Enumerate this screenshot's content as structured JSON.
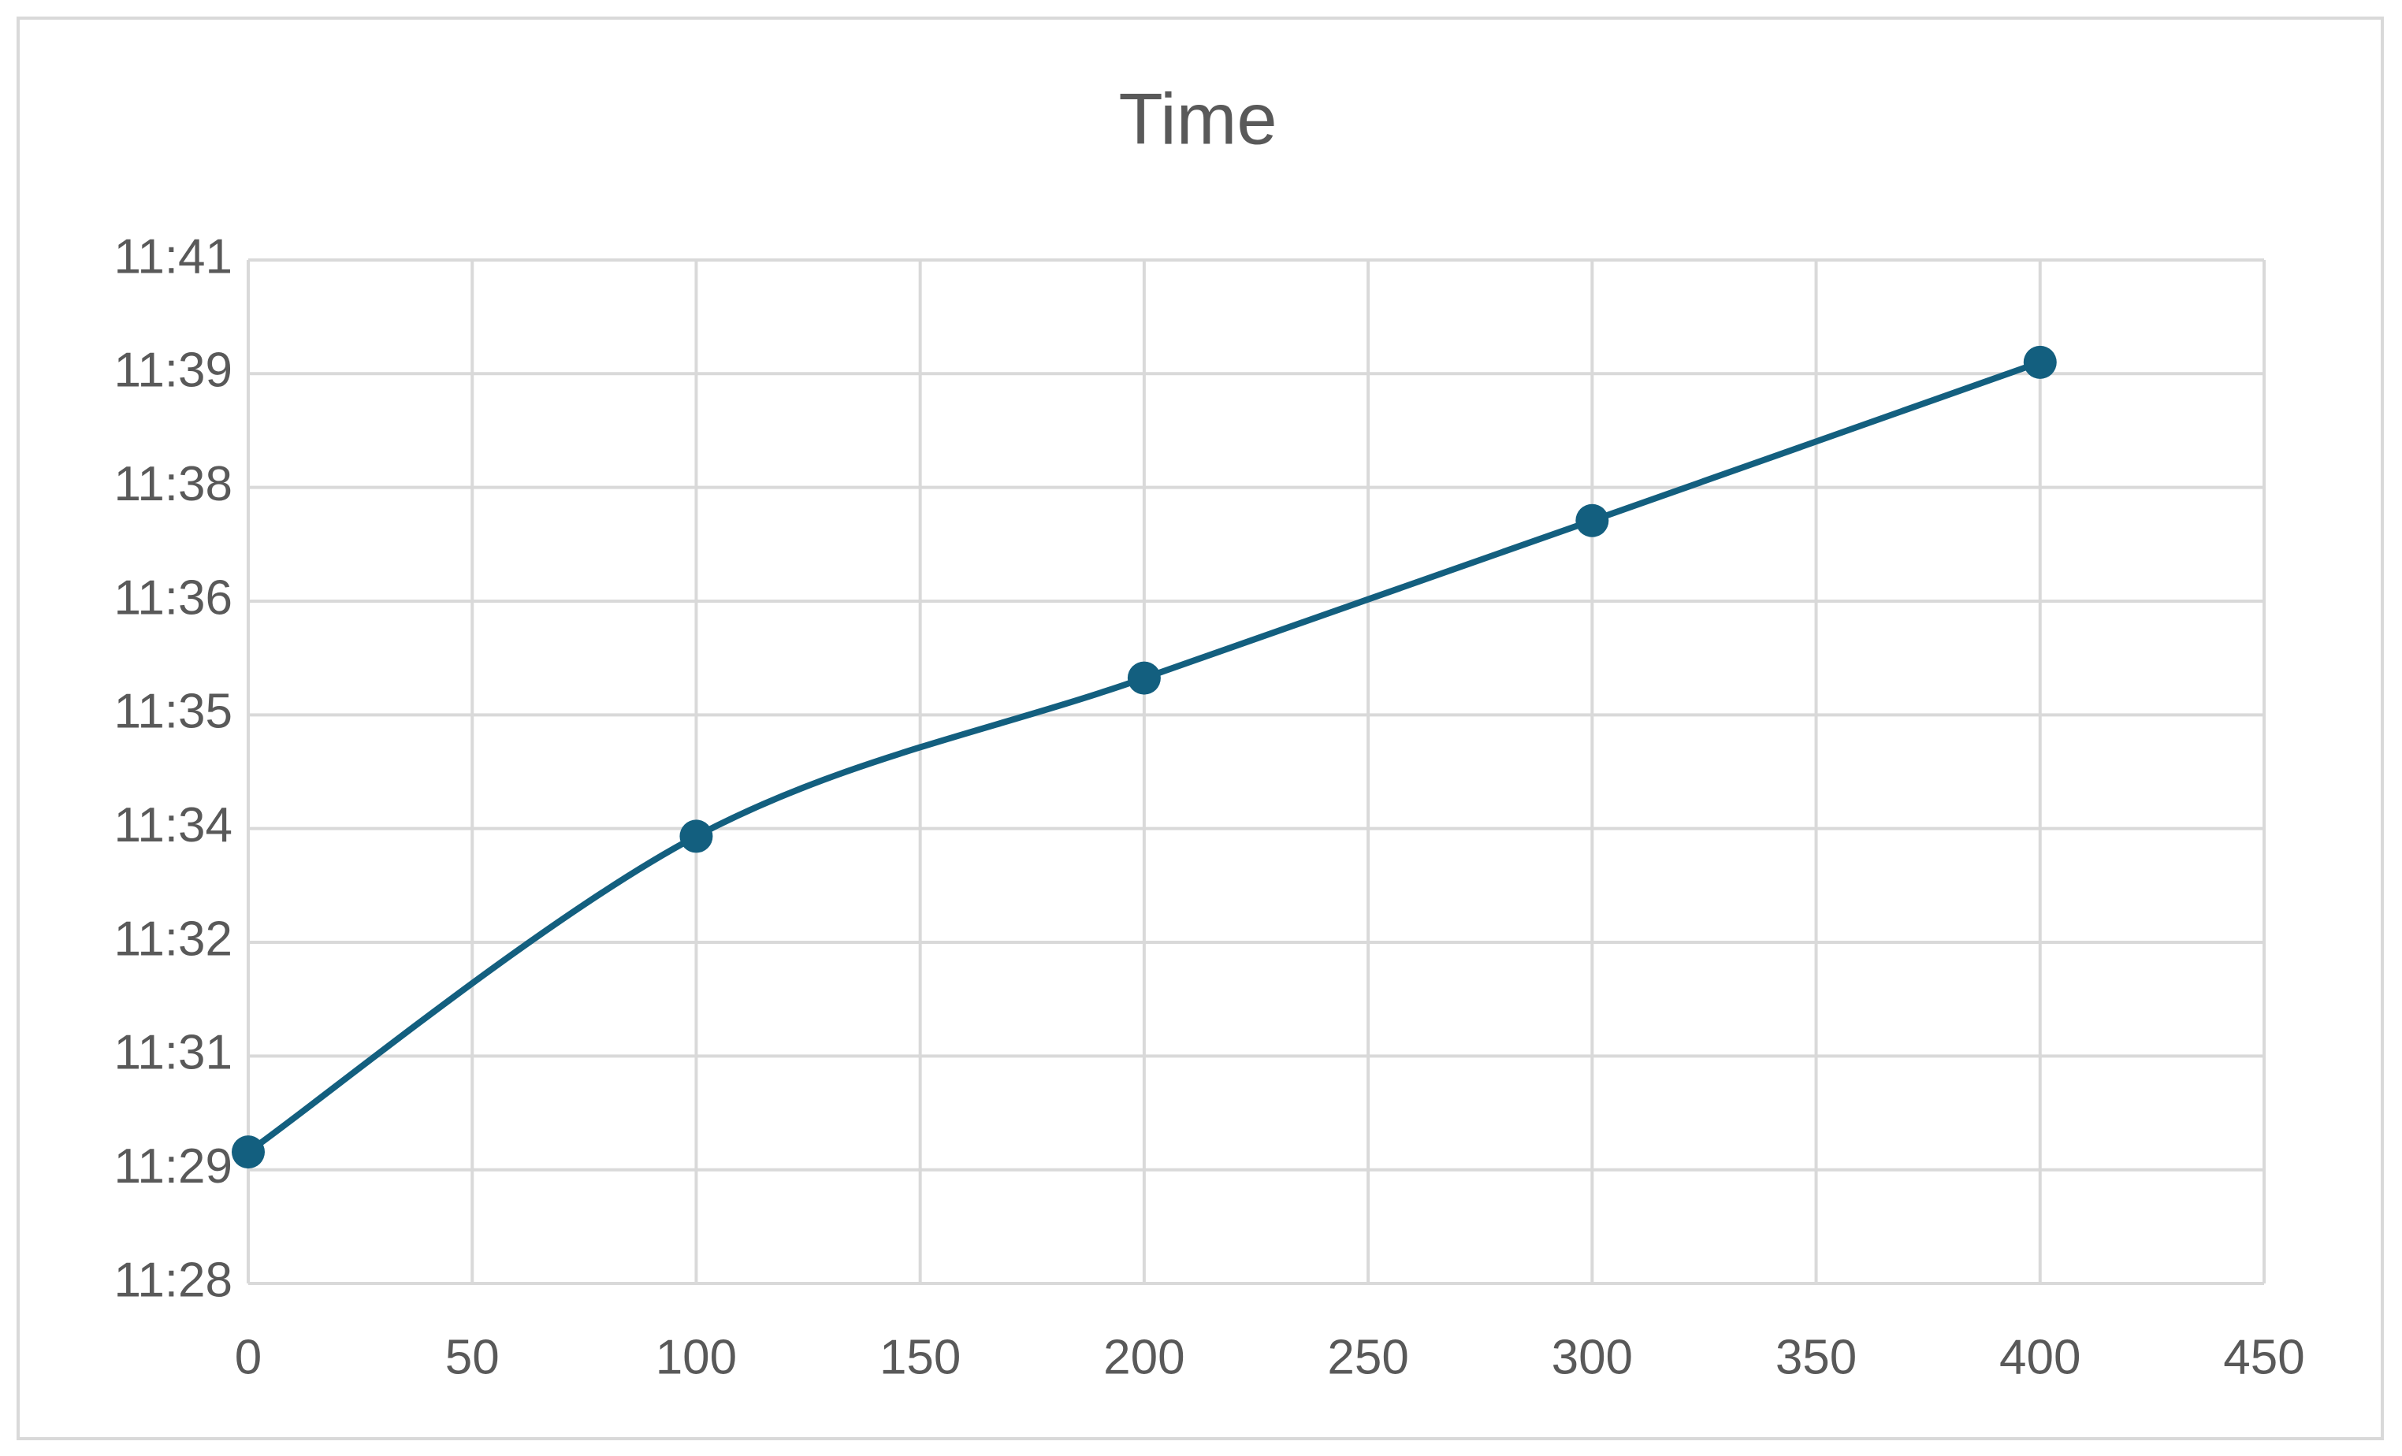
{
  "chart_data": {
    "type": "scatter",
    "title": "Time",
    "x": [
      0,
      100,
      200,
      300,
      400
    ],
    "series": [
      {
        "name": "Time",
        "color": "#135f7f",
        "values": [
          689.67,
          693.68,
          695.69,
          697.69,
          699.7
        ]
      }
    ],
    "xlim": [
      0,
      450
    ],
    "xticks": [
      0,
      50,
      100,
      150,
      200,
      250,
      300,
      350,
      400,
      450
    ],
    "ylim": [
      688,
      701
    ],
    "yticks": [
      {
        "value": 688,
        "label": "11:28"
      },
      {
        "value": 689.444,
        "label": "11:29"
      },
      {
        "value": 690.889,
        "label": "11:31"
      },
      {
        "value": 692.333,
        "label": "11:32"
      },
      {
        "value": 693.778,
        "label": "11:34"
      },
      {
        "value": 695.222,
        "label": "11:35"
      },
      {
        "value": 696.667,
        "label": "11:36"
      },
      {
        "value": 698.111,
        "label": "11:38"
      },
      {
        "value": 699.556,
        "label": "11:39"
      },
      {
        "value": 701,
        "label": "11:41"
      }
    ],
    "grid": true,
    "smooth": true,
    "markers": true
  }
}
